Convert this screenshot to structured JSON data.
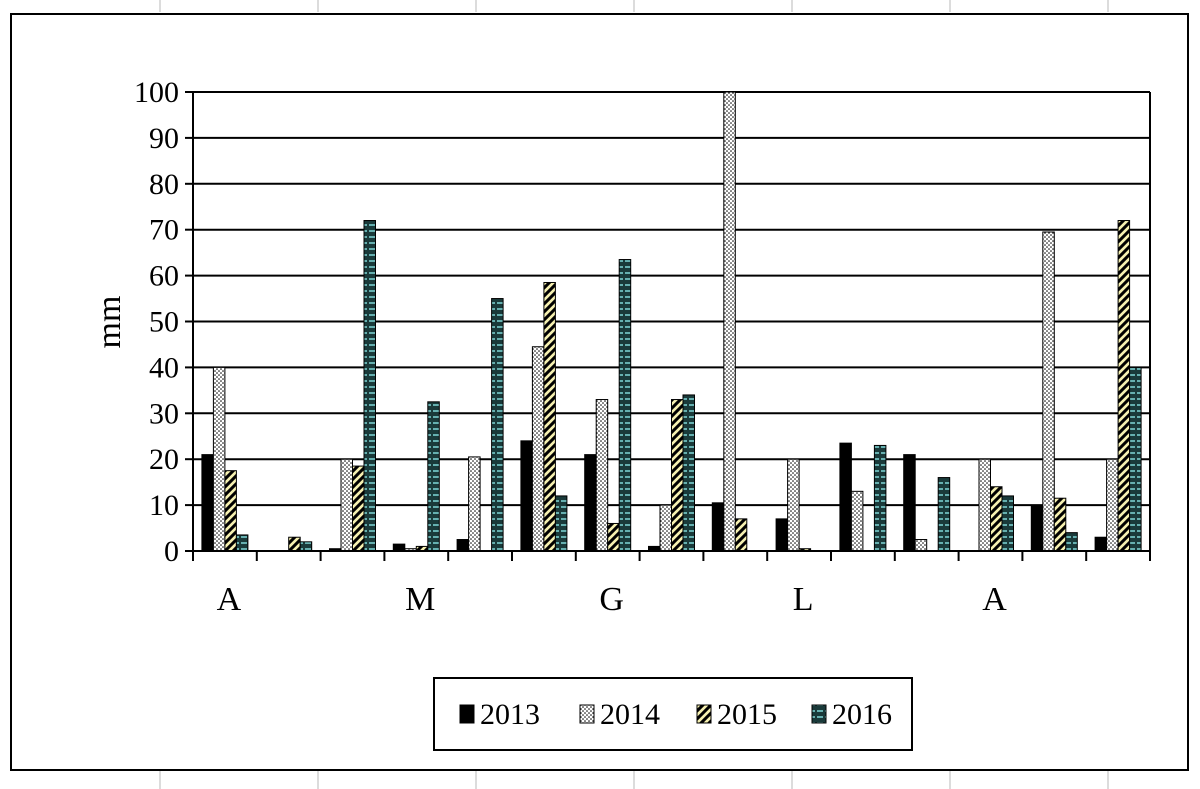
{
  "chart_data": {
    "type": "bar",
    "title": "",
    "xlabel": "",
    "ylabel": "mm",
    "ylim": [
      0,
      100
    ],
    "yticks": [
      0,
      10,
      20,
      30,
      40,
      50,
      60,
      70,
      80,
      90,
      100
    ],
    "grid": true,
    "legend_position": "bottom",
    "month_labels": [
      "A",
      "M",
      "G",
      "L",
      "A"
    ],
    "categories": [
      "1",
      "2",
      "3",
      "4",
      "5",
      "6",
      "7",
      "8",
      "9",
      "10",
      "11",
      "12",
      "13",
      "14",
      "15"
    ],
    "series": [
      {
        "name": "2013",
        "color": "#000000",
        "pattern": "solid",
        "values": [
          21,
          0,
          0.5,
          1.5,
          2.5,
          24,
          21,
          1,
          10.5,
          7,
          23.5,
          21,
          0,
          10,
          3
        ]
      },
      {
        "name": "2014",
        "color": "#ffffff",
        "pattern": "dots",
        "values": [
          40,
          0,
          20,
          0.5,
          20.5,
          44.5,
          33,
          10,
          100,
          20,
          13,
          2.5,
          20,
          69.5,
          20
        ]
      },
      {
        "name": "2015",
        "color": "#f5f0b0",
        "pattern": "diagonal",
        "values": [
          17.5,
          3,
          18.5,
          1,
          0,
          58.5,
          6,
          33,
          7,
          0.5,
          0,
          0,
          14,
          11.5,
          72
        ]
      },
      {
        "name": "2016",
        "color": "#1a3a3a",
        "pattern": "dashes",
        "values": [
          3.5,
          2,
          72,
          32.5,
          55,
          12,
          63.5,
          34,
          0,
          0,
          23,
          16,
          12,
          4,
          40
        ]
      }
    ]
  }
}
